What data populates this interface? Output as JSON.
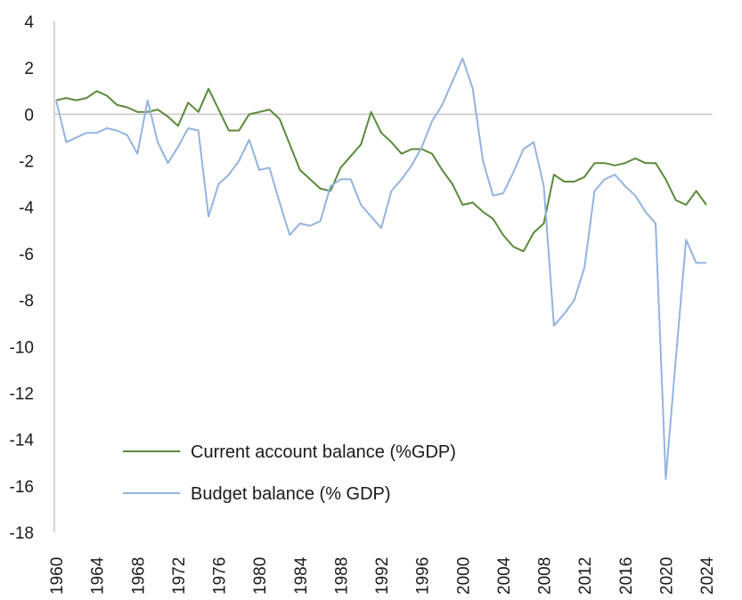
{
  "chart_data": {
    "type": "line",
    "title": "",
    "xlabel": "",
    "ylabel": "",
    "xlim": [
      1960,
      2024
    ],
    "ylim": [
      -18,
      4
    ],
    "y_ticks": [
      4,
      2,
      0,
      -2,
      -4,
      -6,
      -8,
      -10,
      -12,
      -14,
      -16,
      -18
    ],
    "x_ticks": [
      1960,
      1964,
      1968,
      1972,
      1976,
      1980,
      1984,
      1988,
      1992,
      1996,
      2000,
      2004,
      2008,
      2012,
      2016,
      2020,
      2024
    ],
    "grid": false,
    "legend_position": "bottom-left",
    "x": [
      1960,
      1961,
      1962,
      1963,
      1964,
      1965,
      1966,
      1967,
      1968,
      1969,
      1970,
      1971,
      1972,
      1973,
      1974,
      1975,
      1976,
      1977,
      1978,
      1979,
      1980,
      1981,
      1982,
      1983,
      1984,
      1985,
      1986,
      1987,
      1988,
      1989,
      1990,
      1991,
      1992,
      1993,
      1994,
      1995,
      1996,
      1997,
      1998,
      1999,
      2000,
      2001,
      2002,
      2003,
      2004,
      2005,
      2006,
      2007,
      2008,
      2009,
      2010,
      2011,
      2012,
      2013,
      2014,
      2015,
      2016,
      2017,
      2018,
      2019,
      2020,
      2021,
      2022,
      2023,
      2024
    ],
    "series": [
      {
        "name": "Current account balance (%GDP)",
        "color": "#5a8a3a",
        "values": [
          0.6,
          0.7,
          0.6,
          0.7,
          1.0,
          0.8,
          0.4,
          0.3,
          0.1,
          0.1,
          0.2,
          -0.1,
          -0.5,
          0.5,
          0.1,
          1.1,
          0.2,
          -0.7,
          -0.7,
          0.0,
          0.1,
          0.2,
          -0.2,
          -1.3,
          -2.4,
          -2.8,
          -3.2,
          -3.3,
          -2.3,
          -1.8,
          -1.3,
          0.1,
          -0.8,
          -1.2,
          -1.7,
          -1.5,
          -1.5,
          -1.7,
          -2.4,
          -3.0,
          -3.9,
          -3.8,
          -4.2,
          -4.5,
          -5.2,
          -5.7,
          -5.9,
          -5.1,
          -4.7,
          -2.6,
          -2.9,
          -2.9,
          -2.7,
          -2.1,
          -2.1,
          -2.2,
          -2.1,
          -1.9,
          -2.1,
          -2.1,
          -2.8,
          -3.7,
          -3.9,
          -3.3,
          -3.9
        ]
      },
      {
        "name": "Budget balance (% GDP)",
        "color": "#94b3e0",
        "values": [
          0.6,
          -1.2,
          -1.0,
          -0.8,
          -0.8,
          -0.6,
          -0.7,
          -0.9,
          -1.7,
          0.6,
          -1.2,
          -2.1,
          -1.4,
          -0.6,
          -0.7,
          -4.4,
          -3.0,
          -2.6,
          -2.0,
          -1.1,
          -2.4,
          -2.3,
          -3.8,
          -5.2,
          -4.7,
          -4.8,
          -4.6,
          -3.1,
          -2.8,
          -2.8,
          -3.9,
          -4.4,
          -4.9,
          -3.3,
          -2.8,
          -2.2,
          -1.4,
          -0.3,
          0.4,
          1.4,
          2.4,
          1.1,
          -2.0,
          -3.5,
          -3.4,
          -2.5,
          -1.5,
          -1.2,
          -3.1,
          -9.1,
          -8.6,
          -8.0,
          -6.6,
          -3.3,
          -2.8,
          -2.6,
          -3.1,
          -3.5,
          -4.2,
          -4.7,
          -15.7,
          -10.5,
          -5.4,
          -6.4,
          -6.4
        ]
      }
    ]
  }
}
